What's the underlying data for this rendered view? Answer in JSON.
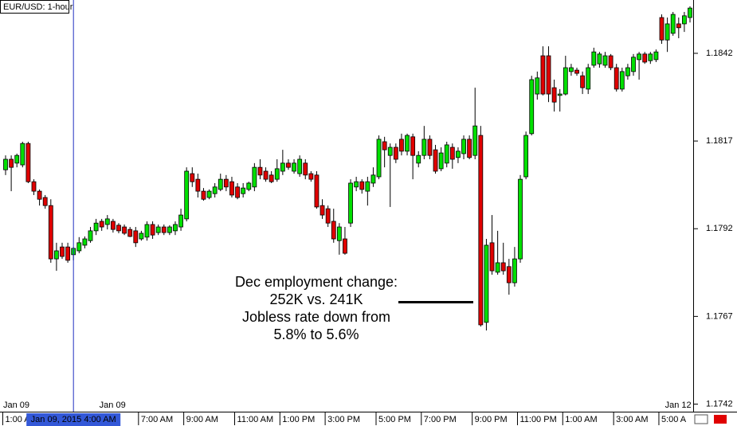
{
  "chart_data": {
    "type": "candlestick",
    "title": "EUR/USD: 1-hour",
    "up_color": "#00e000",
    "down_color": "#e00000",
    "ylim": [
      1.17403,
      1.18572
    ],
    "yticks": [
      1.1742,
      1.1767,
      1.1792,
      1.1817,
      1.1842
    ],
    "categories": [
      "1:00 AM",
      null,
      null,
      null,
      null,
      null,
      null,
      null,
      null,
      null,
      null,
      null,
      null,
      null,
      null,
      null,
      null,
      null,
      null,
      null,
      null,
      null,
      null,
      null,
      "7:00 AM",
      null,
      null,
      null,
      null,
      null,
      null,
      null,
      "9:00 AM",
      null,
      null,
      null,
      null,
      null,
      null,
      null,
      null,
      "11:00 AM",
      null,
      null,
      null,
      null,
      null,
      null,
      null,
      "1:00 PM",
      null,
      null,
      null,
      null,
      null,
      null,
      null,
      "3:00 PM",
      null,
      null,
      null,
      null,
      null,
      null,
      null,
      null,
      "5:00 PM",
      null,
      null,
      null,
      null,
      null,
      null,
      null,
      "7:00 PM",
      null,
      null,
      null,
      null,
      null,
      null,
      null,
      null,
      "9:00 PM",
      null,
      null,
      null,
      null,
      null,
      null,
      null,
      "11:00 PM",
      null,
      null,
      null,
      null,
      null,
      null,
      null,
      "1:00 AM",
      null,
      null,
      null,
      null,
      null,
      null,
      null,
      null,
      "3:00 AM",
      null,
      null,
      null,
      null,
      null,
      null,
      null,
      "5:00 A",
      null,
      null,
      null,
      null,
      null
    ],
    "date_labels": [
      {
        "x": 0,
        "label": "Jan 09"
      },
      {
        "x": 17,
        "label": "Jan 09"
      },
      {
        "x": 117,
        "label": "Jan 12"
      }
    ],
    "crosshair": {
      "x": 12,
      "label": "Jan 09, 2015 4:00 AM"
    },
    "annotation": {
      "lines": [
        "Dec employment change:",
        "252K vs. 241K",
        "Jobless rate down from",
        "5.8% to 5.6%"
      ]
    },
    "open": [
      1.18088,
      1.18118,
      1.18107,
      1.18102,
      1.18163,
      1.18054,
      1.18027,
      1.18009,
      1.17986,
      1.17834,
      1.17868,
      1.17868,
      1.17846,
      1.17857,
      1.17873,
      1.17886,
      1.17914,
      1.17941,
      1.17932,
      1.17941,
      1.1793,
      1.17925,
      1.17918,
      1.17914,
      1.17891,
      1.17896,
      1.17932,
      1.17909,
      1.17925,
      1.17909,
      1.17914,
      1.17925,
      1.17948,
      1.18077,
      1.18061,
      1.18027,
      1.18009,
      1.1802,
      1.18032,
      1.18061,
      1.18054,
      1.18039,
      1.1802,
      1.18032,
      1.18039,
      1.18095,
      1.18084,
      1.18073,
      1.18061,
      1.18084,
      1.18107,
      1.18084,
      1.18077,
      1.18107,
      1.18077,
      1.18073,
      1.17986,
      1.17977,
      1.17941,
      1.17886,
      1.17891,
      1.17936,
      1.18039,
      1.18054,
      1.18027,
      1.1805,
      1.18068,
      1.18168,
      1.18129,
      1.18152,
      1.18175,
      1.18141,
      1.18182,
      1.18107,
      1.18129,
      1.18175,
      1.18145,
      1.18091,
      1.18107,
      1.18152,
      1.18123,
      1.18134,
      1.18175,
      1.18129,
      1.18186,
      1.17653,
      1.1788,
      1.17796,
      1.17823,
      1.17812,
      1.17766,
      1.17834,
      1.18068,
      1.18191,
      1.18304,
      1.18413,
      1.18413,
      1.18322,
      1.183,
      1.18304,
      1.18368,
      1.18372,
      1.18356,
      1.18318,
      1.18386,
      1.1839,
      1.18386,
      1.18413,
      1.18379,
      1.18318,
      1.18356,
      1.18368,
      1.18402,
      1.18418,
      1.18399,
      1.18402,
      1.18522,
      1.18458,
      1.18477,
      1.18504,
      1.18504,
      1.18522
    ],
    "high": [
      1.18129,
      1.18129,
      1.18134,
      1.18168,
      1.18168,
      1.18061,
      1.18032,
      1.18016,
      1.18004,
      1.1788,
      1.1788,
      1.1788,
      1.17868,
      1.17896,
      1.17898,
      1.17925,
      1.17948,
      1.17948,
      1.17959,
      1.17948,
      1.17936,
      1.17932,
      1.17925,
      1.17925,
      1.17914,
      1.17941,
      1.17941,
      1.17932,
      1.17932,
      1.1793,
      1.17941,
      1.17977,
      1.18095,
      1.18095,
      1.18077,
      1.18036,
      1.18032,
      1.1805,
      1.18077,
      1.18073,
      1.18068,
      1.1805,
      1.1805,
      1.18054,
      1.18107,
      1.18118,
      1.18095,
      1.18084,
      1.18118,
      1.18145,
      1.18118,
      1.18118,
      1.18129,
      1.18118,
      1.18084,
      1.18084,
      1.18004,
      1.17986,
      1.17977,
      1.17936,
      1.17925,
      1.18061,
      1.18068,
      1.18061,
      1.18068,
      1.18095,
      1.18186,
      1.18182,
      1.18163,
      1.18163,
      1.18191,
      1.18191,
      1.18191,
      1.18141,
      1.18213,
      1.18186,
      1.18159,
      1.18152,
      1.18168,
      1.18163,
      1.18152,
      1.18186,
      1.18186,
      1.18322,
      1.18213,
      1.17891,
      1.17959,
      1.17914,
      1.1788,
      1.17834,
      1.17868,
      1.18073,
      1.18197,
      1.18356,
      1.18368,
      1.1844,
      1.1844,
      1.18345,
      1.18318,
      1.18413,
      1.1839,
      1.18379,
      1.18368,
      1.1839,
      1.18436,
      1.18424,
      1.18424,
      1.18418,
      1.1839,
      1.18379,
      1.1839,
      1.18418,
      1.18424,
      1.18424,
      1.18424,
      1.18431,
      1.18531,
      1.18522,
      1.18538,
      1.18522,
      1.18538,
      1.18554
    ],
    "low": [
      1.18073,
      1.18027,
      1.18095,
      1.18095,
      1.1805,
      1.18016,
      1.17986,
      1.17977,
      1.17823,
      1.178,
      1.17834,
      1.17823,
      1.1783,
      1.1785,
      1.17864,
      1.1788,
      1.17902,
      1.17914,
      1.17918,
      1.17909,
      1.17907,
      1.17902,
      1.17896,
      1.17868,
      1.17886,
      1.17886,
      1.17891,
      1.17902,
      1.17902,
      1.17902,
      1.17902,
      1.17914,
      1.17941,
      1.18039,
      1.18009,
      1.18,
      1.18004,
      1.18009,
      1.18027,
      1.18027,
      1.18009,
      1.18004,
      1.18009,
      1.18027,
      1.18027,
      1.18061,
      1.18054,
      1.1805,
      1.18054,
      1.18073,
      1.18088,
      1.18077,
      1.18068,
      1.18061,
      1.18054,
      1.17977,
      1.17948,
      1.17925,
      1.1788,
      1.17846,
      1.17846,
      1.17925,
      1.18027,
      1.1802,
      1.17986,
      1.18039,
      1.18061,
      1.18095,
      1.17982,
      1.18107,
      1.18129,
      1.18129,
      1.18061,
      1.18095,
      1.18118,
      1.18118,
      1.18077,
      1.18084,
      1.18095,
      1.18091,
      1.18107,
      1.18118,
      1.18118,
      1.18118,
      1.17641,
      1.1763,
      1.17789,
      1.17789,
      1.17789,
      1.17732,
      1.17755,
      1.17823,
      1.18061,
      1.18186,
      1.18288,
      1.183,
      1.18281,
      1.18254,
      1.18254,
      1.183,
      1.18356,
      1.18356,
      1.18304,
      1.18304,
      1.18379,
      1.18379,
      1.18379,
      1.18372,
      1.18311,
      1.18311,
      1.18345,
      1.18356,
      1.18345,
      1.1839,
      1.1839,
      1.18395,
      1.18447,
      1.18424,
      1.1847,
      1.18463,
      1.18481,
      1.18508
    ],
    "close": [
      1.18118,
      1.18095,
      1.18129,
      1.18163,
      1.18054,
      1.18027,
      1.18004,
      1.17986,
      1.17834,
      1.17857,
      1.17841,
      1.1783,
      1.17864,
      1.1788,
      1.17891,
      1.17914,
      1.17936,
      1.17925,
      1.17948,
      1.17918,
      1.17914,
      1.17907,
      1.17898,
      1.1788,
      1.17907,
      1.17932,
      1.17902,
      1.17925,
      1.17909,
      1.17925,
      1.17932,
      1.17959,
      1.18084,
      1.18054,
      1.18027,
      1.18004,
      1.18027,
      1.18039,
      1.18061,
      1.18039,
      1.18016,
      1.18009,
      1.18036,
      1.1805,
      1.18095,
      1.18073,
      1.18061,
      1.18054,
      1.18091,
      1.18107,
      1.18095,
      1.18107,
      1.18118,
      1.18073,
      1.18061,
      1.17982,
      1.17959,
      1.17936,
      1.17891,
      1.17925,
      1.1785,
      1.1805,
      1.18054,
      1.18032,
      1.18054,
      1.18073,
      1.18175,
      1.18145,
      1.18152,
      1.18118,
      1.18141,
      1.18186,
      1.18129,
      1.18129,
      1.18175,
      1.18129,
      1.18084,
      1.18136,
      1.18159,
      1.18118,
      1.18141,
      1.18175,
      1.18123,
      1.18213,
      1.17646,
      1.17873,
      1.178,
      1.17823,
      1.178,
      1.17766,
      1.17834,
      1.18061,
      1.18186,
      1.18345,
      1.1835,
      1.18304,
      1.18304,
      1.18281,
      1.18304,
      1.18379,
      1.18379,
      1.18363,
      1.18322,
      1.18379,
      1.18424,
      1.18418,
      1.18413,
      1.18379,
      1.18318,
      1.18368,
      1.18379,
      1.18409,
      1.18418,
      1.18395,
      1.18418,
      1.18424,
      1.18458,
      1.18504,
      1.18531,
      1.18493,
      1.18527,
      1.18549
    ]
  }
}
